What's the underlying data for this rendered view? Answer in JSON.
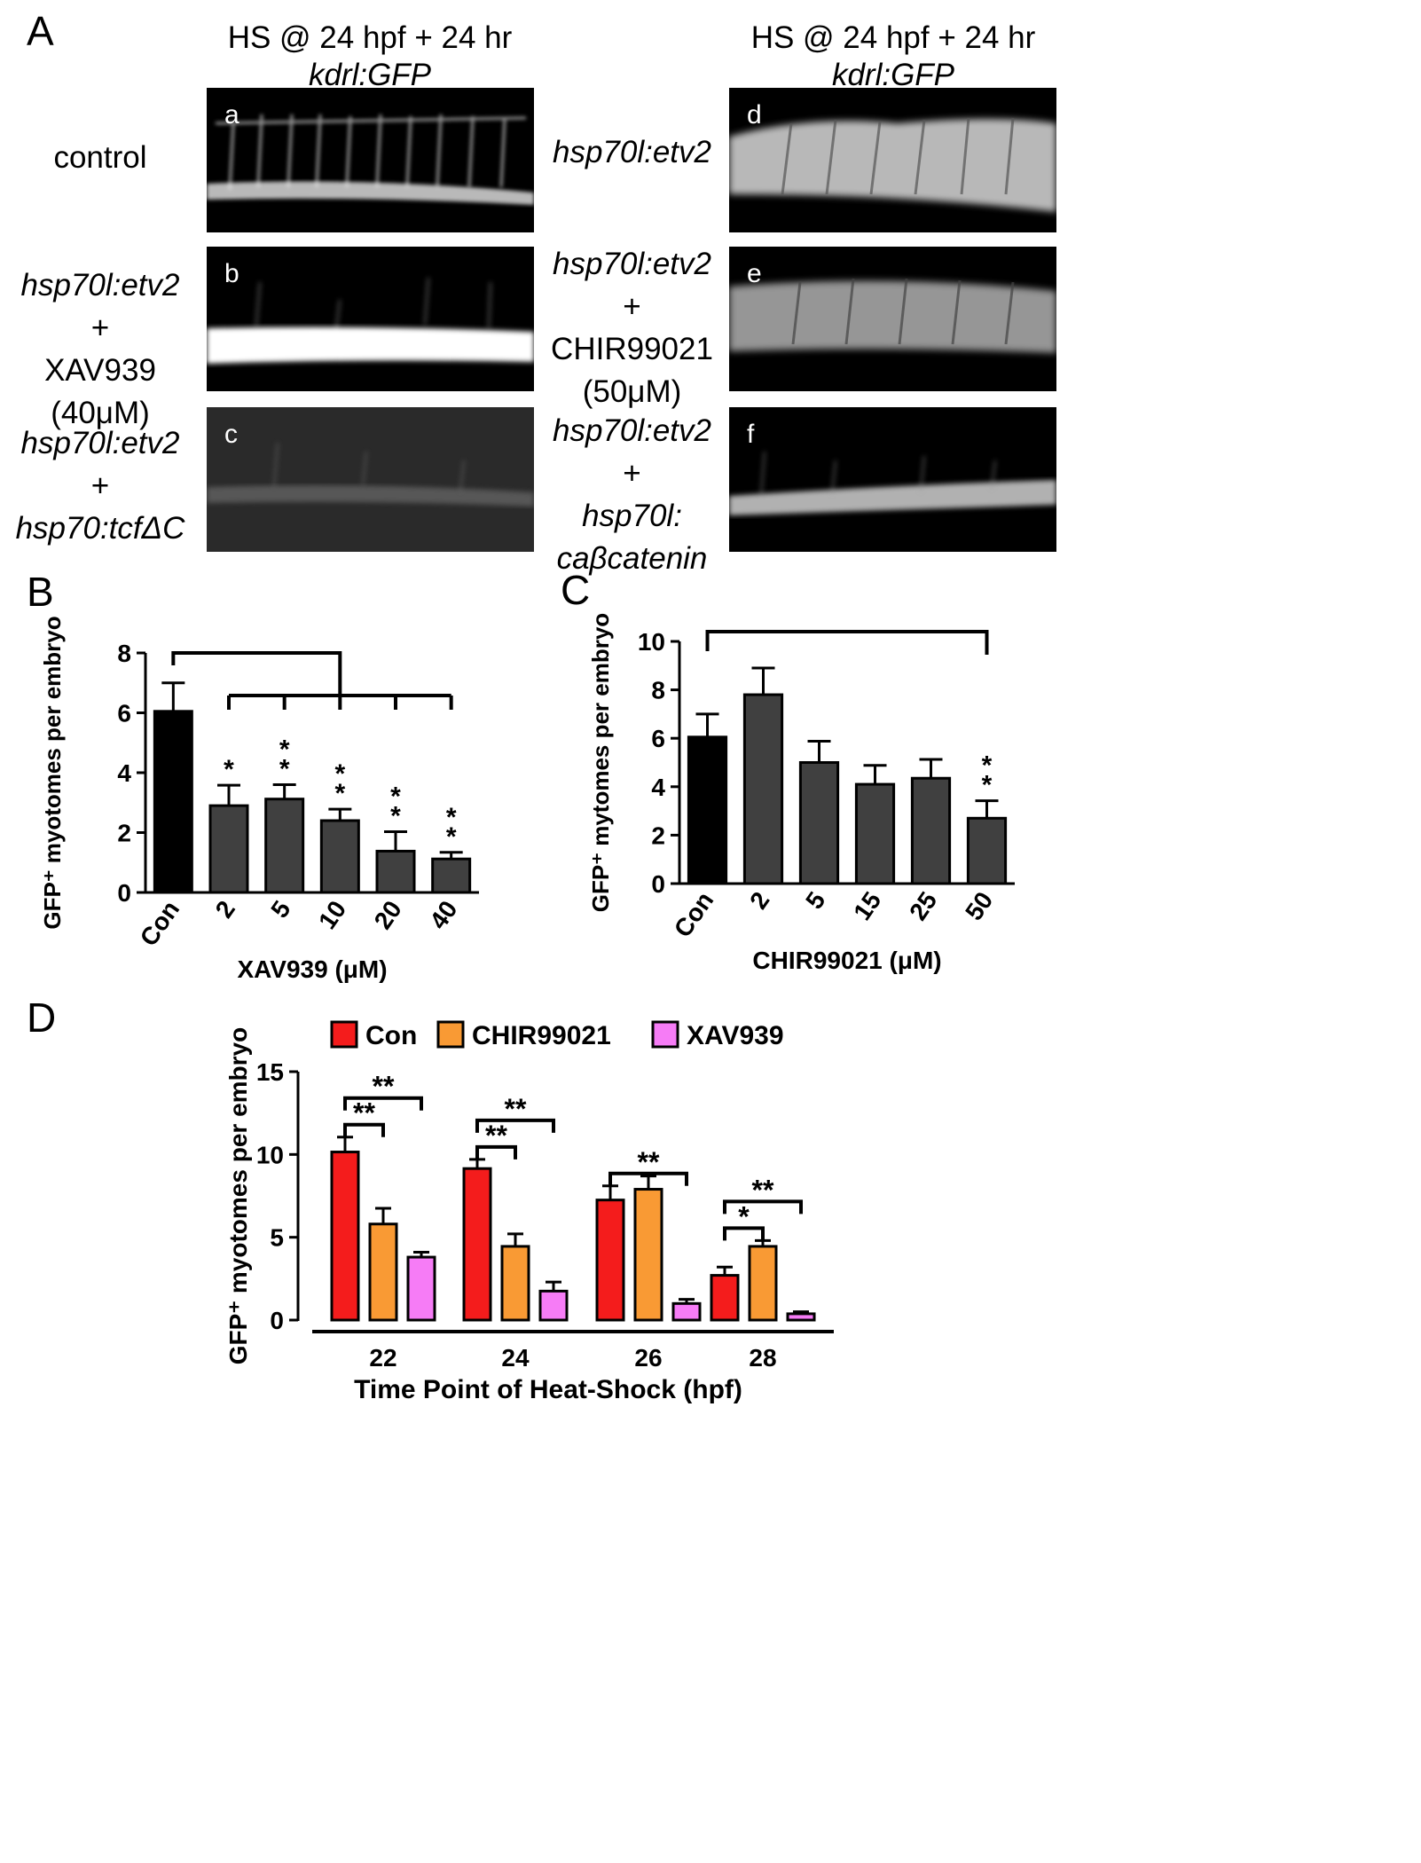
{
  "panel_labels": {
    "A": "A",
    "B": "B",
    "C": "C",
    "D": "D"
  },
  "panel_a": {
    "header_left": {
      "line1": "HS @ 24 hpf + 24 hr",
      "line2": "kdrl:GFP"
    },
    "header_right": {
      "line1": "HS @ 24 hpf + 24 hr",
      "line2": "kdrl:GFP"
    },
    "left_rows": [
      {
        "lines": [
          "control"
        ],
        "italic": [
          false
        ]
      },
      {
        "lines": [
          "hsp70l:etv2",
          "+",
          "XAV939 (40μM)"
        ],
        "italic": [
          true,
          false,
          false
        ]
      },
      {
        "lines": [
          "hsp70l:etv2",
          "+",
          "hsp70:tcfΔC"
        ],
        "italic": [
          true,
          false,
          true
        ]
      }
    ],
    "right_rows": [
      {
        "lines": [
          "hsp70l:etv2"
        ],
        "italic": [
          true
        ]
      },
      {
        "lines": [
          "hsp70l:etv2",
          "+",
          "CHIR99021",
          "(50μM)"
        ],
        "italic": [
          true,
          false,
          false,
          false
        ]
      },
      {
        "lines": [
          "hsp70l:etv2",
          "+",
          "hsp70l:",
          "caβcatenin"
        ],
        "italic": [
          true,
          false,
          true,
          true
        ]
      }
    ],
    "micrograph_tags": [
      "a",
      "b",
      "c",
      "d",
      "e",
      "f"
    ]
  },
  "chart_data": [
    {
      "type": "bar",
      "panel": "B",
      "ylabel": "GFP⁺ myotomes per embryo",
      "xlabel": "XAV939 (μM)",
      "categories": [
        "Con",
        "2",
        "5",
        "10",
        "20",
        "40"
      ],
      "values": [
        6.05,
        2.9,
        3.12,
        2.4,
        1.38,
        1.12
      ],
      "errors": [
        0.95,
        0.68,
        0.48,
        0.38,
        0.65,
        0.22
      ],
      "ylim": [
        0,
        8
      ],
      "yticks": [
        0,
        2,
        4,
        6,
        8
      ],
      "significance": [
        "",
        "*",
        "**",
        "**",
        "**",
        "**"
      ],
      "colors": {
        "control": "#000000",
        "treated": "#404040"
      }
    },
    {
      "type": "bar",
      "panel": "C",
      "ylabel": "GFP⁺ mytomes per embryo",
      "xlabel": "CHIR99021 (μM)",
      "categories": [
        "Con",
        "2",
        "5",
        "15",
        "25",
        "50"
      ],
      "values": [
        6.05,
        7.8,
        5.0,
        4.1,
        4.35,
        2.7
      ],
      "errors": [
        0.95,
        1.1,
        0.88,
        0.78,
        0.78,
        0.72
      ],
      "ylim": [
        0,
        10
      ],
      "yticks": [
        0,
        2,
        4,
        6,
        8,
        10
      ],
      "significance": [
        "",
        "",
        "",
        "",
        "",
        "**"
      ],
      "colors": {
        "control": "#000000",
        "treated": "#404040"
      }
    },
    {
      "type": "bar",
      "panel": "D",
      "ylabel": "GFP⁺ myotomes per embryo",
      "xlabel": "Time Point of Heat-Shock (hpf)",
      "categories": [
        "22",
        "24",
        "26",
        "28"
      ],
      "ylim": [
        0,
        15
      ],
      "yticks": [
        0,
        5,
        10,
        15
      ],
      "series": [
        {
          "name": "Con",
          "color": "#f41c1c",
          "values": [
            10.15,
            9.15,
            7.25,
            2.7
          ],
          "errors": [
            0.9,
            0.55,
            0.85,
            0.5
          ]
        },
        {
          "name": "CHIR99021",
          "color": "#f99a34",
          "values": [
            5.8,
            4.45,
            7.9,
            4.45
          ],
          "errors": [
            0.95,
            0.75,
            0.8,
            0.35
          ]
        },
        {
          "name": "XAV939",
          "color": "#f67cf6",
          "values": [
            3.8,
            1.75,
            1.0,
            0.38
          ],
          "errors": [
            0.3,
            0.55,
            0.25,
            0.12
          ]
        }
      ],
      "brackets": [
        {
          "group": 0,
          "from": 0,
          "to": 1,
          "label": "**"
        },
        {
          "group": 0,
          "from": 0,
          "to": 2,
          "label": "**"
        },
        {
          "group": 1,
          "from": 0,
          "to": 1,
          "label": "**"
        },
        {
          "group": 1,
          "from": 0,
          "to": 2,
          "label": "**"
        },
        {
          "group": 2,
          "from": 0,
          "to": 2,
          "label": "**"
        },
        {
          "group": 3,
          "from": 0,
          "to": 1,
          "label": "*"
        },
        {
          "group": 3,
          "from": 0,
          "to": 2,
          "label": "**"
        }
      ]
    }
  ]
}
